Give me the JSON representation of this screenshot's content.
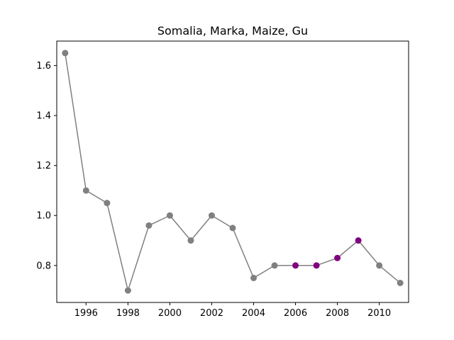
{
  "chart_data": {
    "type": "line",
    "title": "Somalia, Marka, Maize, Gu",
    "xlabel": "",
    "ylabel": "",
    "xlim": [
      1994.6,
      2011.4
    ],
    "ylim": [
      0.652,
      1.698
    ],
    "x_ticks": [
      1996,
      1998,
      2000,
      2002,
      2004,
      2006,
      2008,
      2010
    ],
    "y_ticks": [
      0.8,
      1.0,
      1.2,
      1.4,
      1.6
    ],
    "y_tick_labels": [
      "0.8",
      "1.0",
      "1.2",
      "1.4",
      "1.6"
    ],
    "grid": false,
    "line_color": "#808080",
    "series": [
      {
        "x": [
          1995,
          1996,
          1997,
          1998,
          1999,
          2000,
          2001,
          2002,
          2003,
          2004,
          2005,
          2006,
          2007,
          2008,
          2009,
          2010,
          2011
        ],
        "y": [
          1.65,
          1.1,
          1.05,
          0.7,
          0.96,
          1.0,
          0.9,
          1.0,
          0.95,
          0.75,
          0.8,
          0.8,
          0.8,
          0.83,
          0.9,
          0.8,
          0.73
        ],
        "point_colors": [
          "#808080",
          "#808080",
          "#808080",
          "#808080",
          "#808080",
          "#808080",
          "#808080",
          "#808080",
          "#808080",
          "#808080",
          "#808080",
          "#800080",
          "#800080",
          "#800080",
          "#800080",
          "#808080",
          "#808080"
        ]
      }
    ]
  }
}
